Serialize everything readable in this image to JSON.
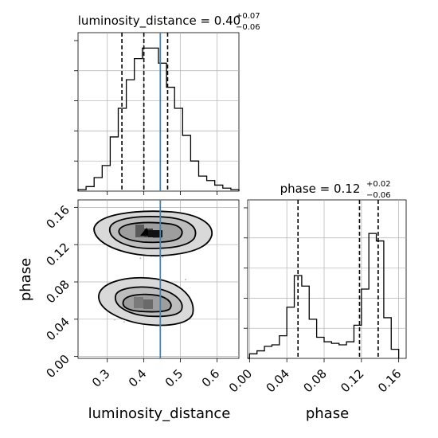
{
  "chart_data": {
    "type": "corner",
    "parameters": [
      "luminosity_distance",
      "phase"
    ],
    "injection": {
      "luminosity_distance": 0.445,
      "phase": null
    },
    "truth_color": "#4682b4",
    "panels": [
      {
        "id": "hist_luminosity_distance",
        "type": "histogram",
        "title": {
          "main": "luminosity_distance = 0.40",
          "upper": "+0.07",
          "lower": "−0.06"
        },
        "xlim": [
          0.22,
          0.66
        ],
        "ylim": [
          0,
          1
        ],
        "quantiles": [
          0.34,
          0.4,
          0.465
        ],
        "bin_edges": [
          0.22,
          0.242,
          0.264,
          0.286,
          0.308,
          0.33,
          0.352,
          0.374,
          0.396,
          0.418,
          0.44,
          0.462,
          0.484,
          0.506,
          0.528,
          0.55,
          0.572,
          0.594,
          0.616,
          0.638,
          0.66
        ],
        "counts": [
          0.01,
          0.03,
          0.09,
          0.17,
          0.36,
          0.55,
          0.74,
          0.88,
          0.95,
          0.95,
          0.85,
          0.69,
          0.55,
          0.37,
          0.2,
          0.1,
          0.07,
          0.04,
          0.02,
          0.01
        ]
      },
      {
        "id": "hist_phase",
        "type": "histogram",
        "title": {
          "main": "phase = 0.12",
          "upper": "+0.02",
          "lower": "−0.06"
        },
        "xlim": [
          -0.002,
          0.168
        ],
        "ylim": [
          0,
          1
        ],
        "quantiles": [
          0.052,
          0.118,
          0.138
        ],
        "bin_edges": [
          0.0,
          0.008,
          0.016,
          0.024,
          0.032,
          0.04,
          0.048,
          0.056,
          0.064,
          0.072,
          0.08,
          0.088,
          0.096,
          0.104,
          0.112,
          0.12,
          0.128,
          0.136,
          0.144,
          0.152,
          0.16
        ],
        "counts": [
          0.03,
          0.05,
          0.08,
          0.09,
          0.15,
          0.34,
          0.55,
          0.48,
          0.26,
          0.14,
          0.11,
          0.1,
          0.09,
          0.11,
          0.22,
          0.46,
          0.83,
          0.78,
          0.27,
          0.06
        ]
      },
      {
        "id": "joint_luminosity_distance_phase",
        "type": "2d-density",
        "xlim": [
          0.22,
          0.66
        ],
        "ylim": [
          -0.002,
          0.168
        ],
        "modes": [
          {
            "x": 0.43,
            "y": 0.132,
            "peak_x": 0.4,
            "peak_y": 0.135
          },
          {
            "x": 0.41,
            "y": 0.058,
            "peak_x": 0.41,
            "peak_y": 0.057
          }
        ]
      }
    ],
    "x_ticks": {
      "luminosity_distance": [
        "0.3",
        "0.4",
        "0.5",
        "0.6"
      ],
      "phase": [
        "0.00",
        "0.04",
        "0.08",
        "0.12",
        "0.16"
      ]
    },
    "y_ticks": {
      "phase": [
        "0.00",
        "0.04",
        "0.08",
        "0.12",
        "0.16"
      ]
    },
    "xlabels": [
      "luminosity_distance",
      "phase"
    ],
    "ylabels": [
      "",
      "phase"
    ],
    "grid": true
  }
}
